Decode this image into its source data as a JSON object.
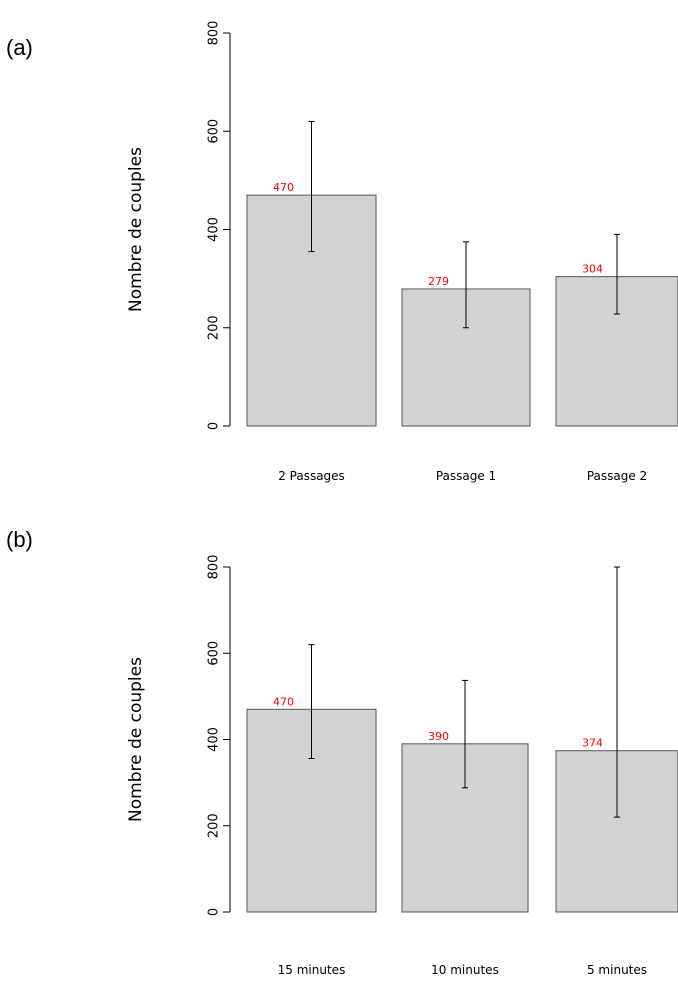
{
  "panels": [
    {
      "label": "(a)"
    },
    {
      "label": "(b)"
    }
  ],
  "chart_data": [
    {
      "type": "bar",
      "ylabel": "Nombre de couples",
      "ylim": [
        0,
        800
      ],
      "yticks": [
        0,
        200,
        400,
        600,
        800
      ],
      "categories": [
        "2 Passages",
        "Passage 1",
        "Passage 2"
      ],
      "values": [
        470,
        279,
        304
      ],
      "value_labels": [
        "470",
        "279",
        "304"
      ],
      "error_low": [
        355,
        200,
        228
      ],
      "error_high": [
        620,
        375,
        390
      ],
      "bar_color": "#d3d3d3",
      "label_color": "#ff0000"
    },
    {
      "type": "bar",
      "ylabel": "Nombre de couples",
      "ylim": [
        0,
        800
      ],
      "yticks": [
        0,
        200,
        400,
        600,
        800
      ],
      "categories": [
        "15 minutes",
        "10 minutes",
        "5 minutes"
      ],
      "values": [
        470,
        390,
        374
      ],
      "value_labels": [
        "470",
        "390",
        "374"
      ],
      "error_low": [
        356,
        288,
        220
      ],
      "error_high": [
        620,
        537,
        800
      ],
      "bar_color": "#d3d3d3",
      "label_color": "#ff0000"
    }
  ]
}
